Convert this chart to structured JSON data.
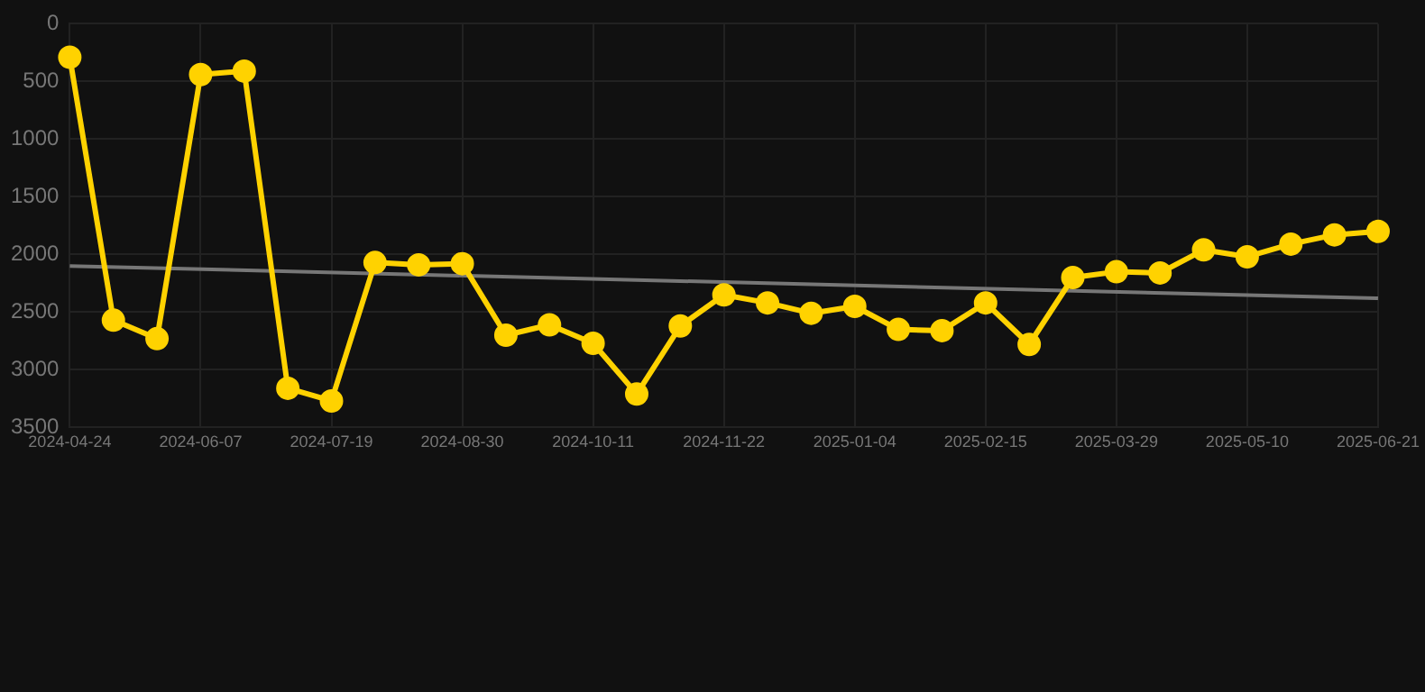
{
  "chart_data": {
    "type": "line",
    "categories": [
      "2024-04-24",
      null,
      null,
      "2024-06-07",
      null,
      null,
      "2024-07-19",
      null,
      null,
      "2024-08-30",
      null,
      null,
      "2024-10-11",
      null,
      null,
      "2024-11-22",
      null,
      null,
      "2025-01-04",
      null,
      null,
      "2025-02-15",
      null,
      null,
      "2025-03-29",
      null,
      null,
      "2025-05-10",
      null,
      null,
      "2025-06-21"
    ],
    "series": [
      {
        "color": "#ffd200",
        "marker": "circle",
        "values": [
          290,
          2570,
          2730,
          440,
          410,
          3160,
          3270,
          2070,
          2090,
          2080,
          2700,
          2610,
          2770,
          3210,
          2620,
          2350,
          2420,
          2510,
          2450,
          2650,
          2660,
          2420,
          2780,
          2200,
          2150,
          2160,
          1960,
          2020,
          1910,
          1830,
          1800
        ]
      },
      {
        "type": "line",
        "color": "#777777",
        "marker": "none",
        "values": [
          2100,
          null,
          null,
          null,
          null,
          null,
          null,
          null,
          null,
          null,
          null,
          null,
          null,
          null,
          null,
          null,
          null,
          null,
          null,
          null,
          null,
          null,
          null,
          null,
          null,
          null,
          null,
          null,
          null,
          null,
          2380
        ]
      }
    ],
    "ylim": [
      3500,
      0
    ],
    "yticks": [
      0,
      500,
      1000,
      1500,
      2000,
      2500,
      3000,
      3500
    ],
    "grid": true,
    "legend": false
  }
}
